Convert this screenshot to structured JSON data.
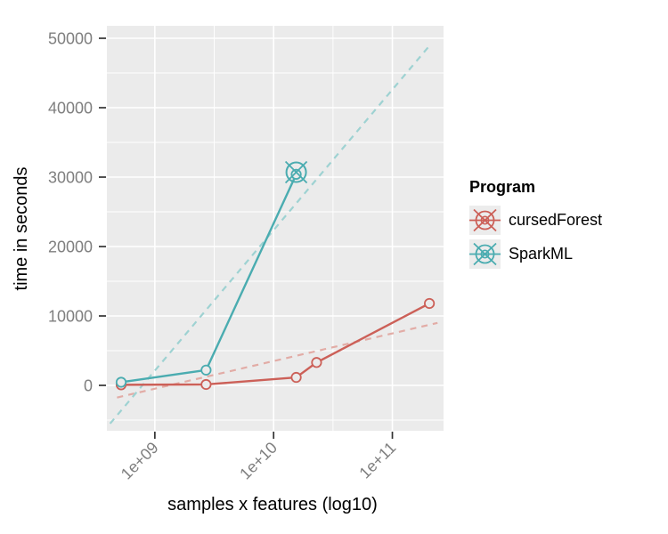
{
  "figure": {
    "panel_bg": "#ebebeb",
    "grid_color": "#ffffff",
    "tick_color": "#333333",
    "tick_label_color": "#7f7f7f",
    "legend_key_bg": "#ececec"
  },
  "axes": {
    "x": {
      "title": "samples x features (log10)",
      "scale": "log10",
      "tick_labels": [
        "1e+09",
        "1e+10",
        "1e+11"
      ],
      "tick_logs": [
        9,
        10,
        11
      ],
      "minor_logs": [
        9.5,
        10.5
      ],
      "range_log": [
        8.596,
        11.431
      ]
    },
    "y": {
      "title": "time in seconds",
      "tick_labels": [
        "0",
        "10000",
        "20000",
        "30000",
        "40000",
        "50000"
      ],
      "tick_values": [
        0,
        10000,
        20000,
        30000,
        40000,
        50000
      ],
      "minor_values": [
        -5000,
        5000,
        15000,
        25000,
        35000,
        45000
      ],
      "range": [
        -6538,
        51795
      ]
    }
  },
  "legend": {
    "title": "Program",
    "items": [
      {
        "label": "cursedForest",
        "color": "#cc6058"
      },
      {
        "label": "SparkML",
        "color": "#4aacb0"
      }
    ]
  },
  "chart_data": {
    "type": "line",
    "title": "",
    "xlabel": "samples x features (log10)",
    "ylabel": "time in seconds",
    "x_scale": "log10",
    "xlim_log10": [
      8.596,
      11.431
    ],
    "ylim": [
      -6538,
      51795
    ],
    "grid": true,
    "legend_position": "right",
    "series": [
      {
        "name": "cursedForest",
        "style": "solid",
        "marker": "open-circle",
        "color": "#cc6058",
        "x": [
          520000000.0,
          2700000000.0,
          15500000000.0,
          23000000000.0,
          205000000000.0
        ],
        "y": [
          80,
          130,
          1150,
          3300,
          11800
        ]
      },
      {
        "name": "SparkML",
        "style": "solid",
        "marker": "open-circle",
        "color": "#4aacb0",
        "x": [
          520000000.0,
          2700000000.0,
          15500000000.0
        ],
        "y": [
          450,
          2200,
          30400
        ]
      },
      {
        "name": "cursedForest-trend",
        "style": "dashed",
        "marker": "none",
        "color": "#e2aca6",
        "x": [
          480000000.0,
          240000000000.0
        ],
        "y": [
          -1750,
          9000
        ]
      },
      {
        "name": "SparkML-trend",
        "style": "dashed",
        "marker": "none",
        "color": "#9ed2d2",
        "x": [
          420000000.0,
          207000000000.0
        ],
        "y": [
          -5500,
          49000
        ]
      }
    ],
    "annotations": [
      {
        "type": "circle-x-marker",
        "series": "SparkML",
        "x": 15500000000.0,
        "y": 30700
      }
    ]
  }
}
